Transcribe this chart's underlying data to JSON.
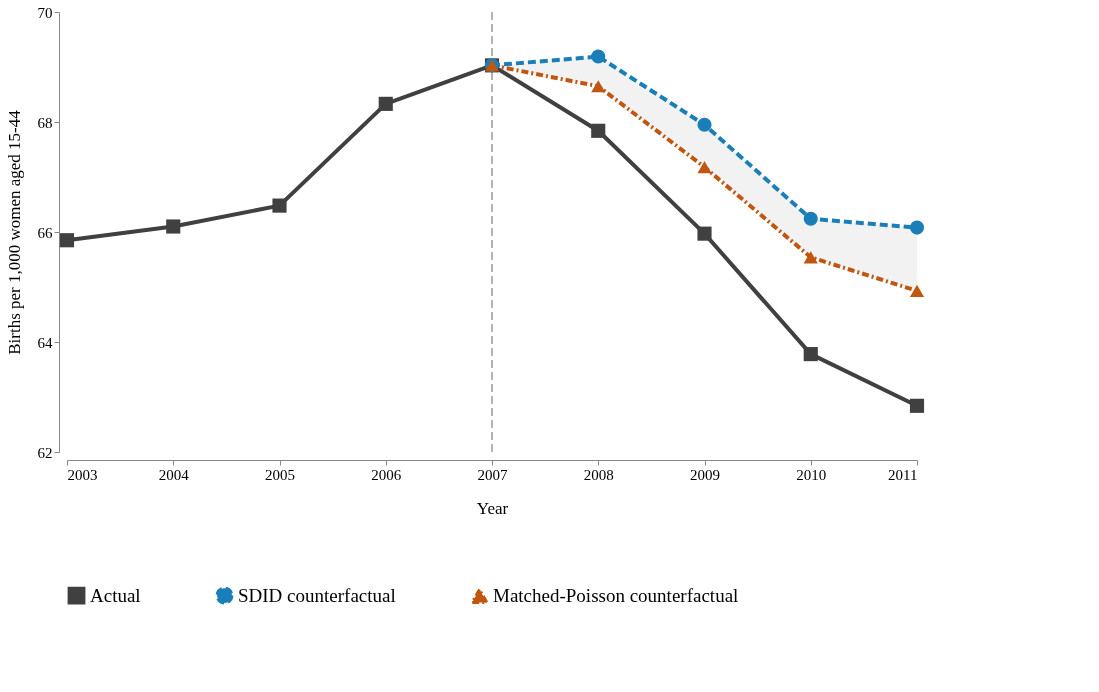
{
  "chart_data": {
    "type": "line",
    "xlabel": "Year",
    "ylabel": "Births per 1,000 women aged 15-44",
    "xlim": [
      2003,
      2011
    ],
    "xticks": [
      2003,
      2004,
      2005,
      2006,
      2007,
      2008,
      2009,
      2010,
      2011
    ],
    "ylim": [
      62,
      70
    ],
    "yticks": [
      62,
      64,
      66,
      68,
      70
    ],
    "grid": false,
    "legend": "bottom",
    "ref_lines": [
      {
        "axis": "x",
        "value": 2007,
        "color": "#999999",
        "line_style": "dashed"
      }
    ],
    "series": [
      {
        "name": "Actual",
        "color": "#404040",
        "marker": "square",
        "line_style": "solid",
        "x": [
          2003,
          2004,
          2005,
          2006,
          2007,
          2008,
          2009,
          2010,
          2011
        ],
        "values": [
          65.85,
          66.1,
          66.48,
          68.33,
          69.03,
          67.84,
          65.97,
          63.78,
          62.84
        ]
      },
      {
        "name": "SDID counterfactual",
        "color": "#1a7fb8",
        "marker": "circle",
        "line_style": "dashed",
        "x": [
          2007,
          2008,
          2009,
          2010,
          2011
        ],
        "values": [
          69.03,
          69.19,
          67.95,
          66.24,
          66.08
        ]
      },
      {
        "name": "Matched-Poisson counterfactual",
        "color": "#c0560f",
        "marker": "triangle",
        "line_style": "dotted",
        "x": [
          2007,
          2008,
          2009,
          2010,
          2011
        ],
        "values": [
          69.03,
          68.65,
          67.18,
          65.54,
          64.93
        ],
        "lower": [
          69.03,
          68.65,
          67.18,
          65.54,
          64.93
        ],
        "upper": [
          69.03,
          69.19,
          67.95,
          66.24,
          66.08
        ]
      }
    ]
  }
}
